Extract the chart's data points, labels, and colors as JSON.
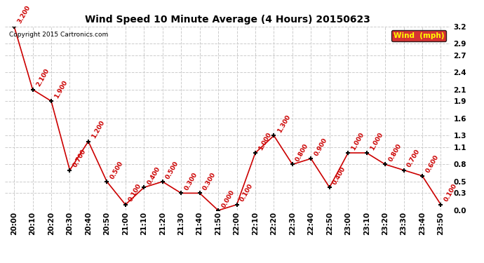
{
  "title": "Wind Speed 10 Minute Average (4 Hours) 20150623",
  "copyright_text": "Copyright 2015 Cartronics.com",
  "legend_label": "Wind  (mph)",
  "times": [
    "20:00",
    "20:10",
    "20:20",
    "20:30",
    "20:40",
    "20:50",
    "21:00",
    "21:10",
    "21:20",
    "21:30",
    "21:40",
    "21:50",
    "22:00",
    "22:10",
    "22:20",
    "22:30",
    "22:40",
    "22:50",
    "23:00",
    "23:10",
    "23:20",
    "23:30",
    "23:40",
    "23:50"
  ],
  "values": [
    3.2,
    2.1,
    1.9,
    0.7,
    1.2,
    0.5,
    0.1,
    0.4,
    0.5,
    0.3,
    0.3,
    0.0,
    0.1,
    1.0,
    1.3,
    0.8,
    0.9,
    0.4,
    1.0,
    1.0,
    0.8,
    0.7,
    0.6,
    0.1
  ],
  "line_color": "#cc0000",
  "marker_color": "#000000",
  "label_color": "#cc0000",
  "legend_bg": "#cc0000",
  "legend_text_color": "#ffff00",
  "ylim": [
    0.0,
    3.2
  ],
  "yticks": [
    0.0,
    0.3,
    0.5,
    0.8,
    1.1,
    1.3,
    1.6,
    1.9,
    2.1,
    2.4,
    2.7,
    2.9,
    3.2
  ],
  "background_color": "#ffffff",
  "grid_color": "#cccccc",
  "title_fontsize": 10,
  "label_fontsize": 6.5,
  "tick_fontsize": 7.5
}
